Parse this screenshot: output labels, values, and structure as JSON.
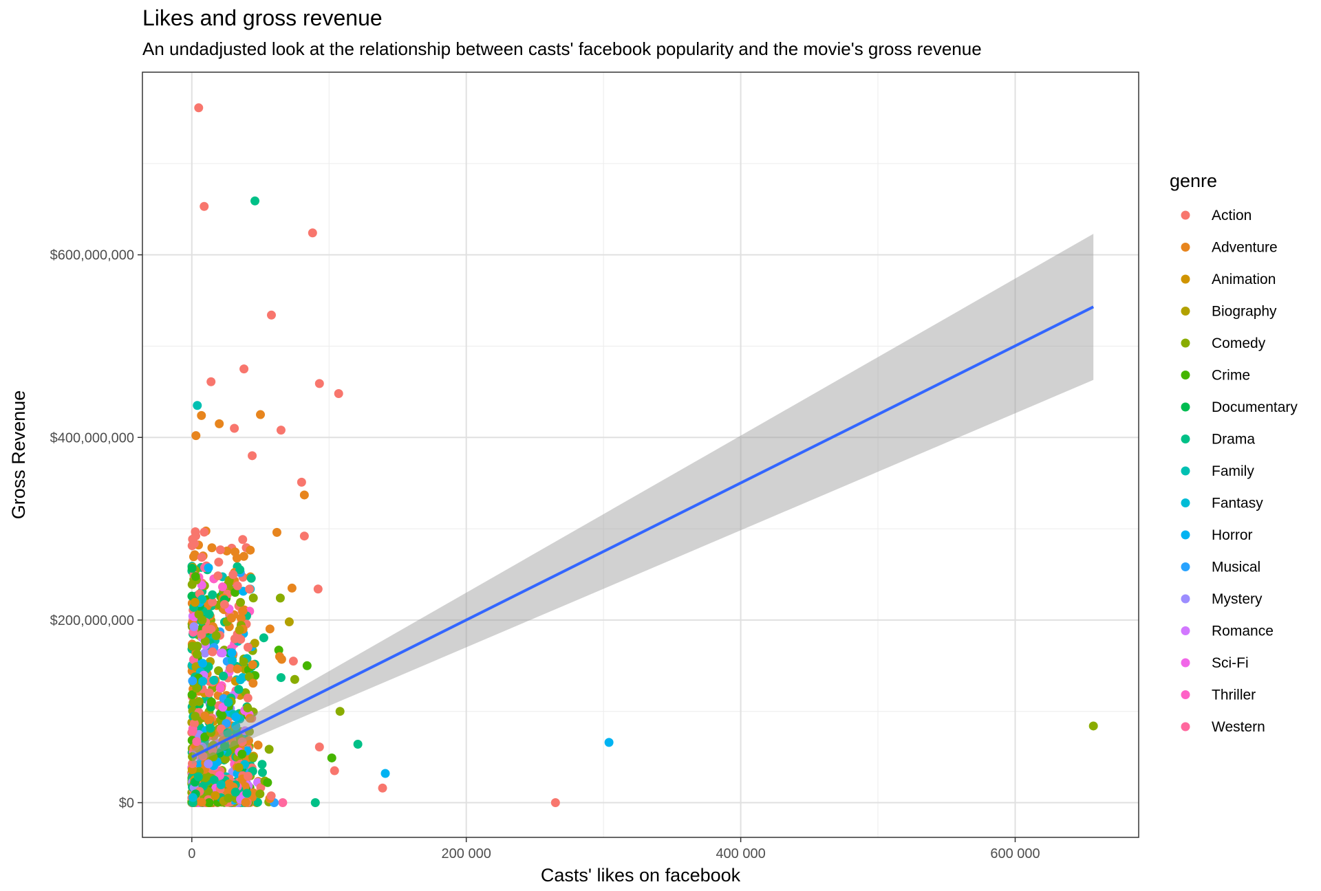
{
  "chart_data": {
    "type": "scatter",
    "title": "Likes and gross revenue",
    "subtitle": "An undadjusted look at the relationship between casts' facebook popularity and the movie's gross revenue",
    "xlabel": "Casts' likes on facebook",
    "ylabel": "Gross Revenue",
    "xlim": [
      -36000,
      690000
    ],
    "ylim": [
      -38000000,
      800000000
    ],
    "x_ticks": [
      {
        "value": 0,
        "label": "0"
      },
      {
        "value": 200000,
        "label": "200 000"
      },
      {
        "value": 400000,
        "label": "400 000"
      },
      {
        "value": 600000,
        "label": "600 000"
      }
    ],
    "y_ticks": [
      {
        "value": 0,
        "label": "$0"
      },
      {
        "value": 200000000,
        "label": "$200,000,000"
      },
      {
        "value": 400000000,
        "label": "$400,000,000"
      },
      {
        "value": 600000000,
        "label": "$600,000,000"
      }
    ],
    "grid": true,
    "legend": {
      "title": "genre",
      "position": "right",
      "entries": [
        {
          "name": "Action",
          "color": "#F8766D"
        },
        {
          "name": "Adventure",
          "color": "#E7851E"
        },
        {
          "name": "Animation",
          "color": "#D09400"
        },
        {
          "name": "Biography",
          "color": "#B2A100"
        },
        {
          "name": "Comedy",
          "color": "#89AC00"
        },
        {
          "name": "Crime",
          "color": "#45B500"
        },
        {
          "name": "Documentary",
          "color": "#00BC51"
        },
        {
          "name": "Drama",
          "color": "#00C087"
        },
        {
          "name": "Family",
          "color": "#00C0B2"
        },
        {
          "name": "Fantasy",
          "color": "#00BCD6"
        },
        {
          "name": "Horror",
          "color": "#00B3F2"
        },
        {
          "name": "Musical",
          "color": "#29A3FF"
        },
        {
          "name": "Mystery",
          "color": "#9C8DFF"
        },
        {
          "name": "Romance",
          "color": "#D277FF"
        },
        {
          "name": "Sci-Fi",
          "color": "#F166E8"
        },
        {
          "name": "Thriller",
          "color": "#FF61C7"
        },
        {
          "name": "Western",
          "color": "#FF689E"
        }
      ]
    },
    "trend_line": {
      "color": "#3366FF",
      "ci_color": "#999999",
      "points": [
        [
          0,
          50000000
        ],
        [
          657000,
          543000000
        ]
      ],
      "ci_upper_end": 623000000,
      "ci_lower_end": 463000000
    },
    "highlighted_points": [
      {
        "genre": "Action",
        "x": 5000,
        "y": 761000000
      },
      {
        "genre": "Action",
        "x": 9000,
        "y": 653000000
      },
      {
        "genre": "Drama",
        "x": 46000,
        "y": 659000000
      },
      {
        "genre": "Action",
        "x": 88000,
        "y": 624000000
      },
      {
        "genre": "Action",
        "x": 58000,
        "y": 534000000
      },
      {
        "genre": "Action",
        "x": 38000,
        "y": 475000000
      },
      {
        "genre": "Action",
        "x": 14000,
        "y": 461000000
      },
      {
        "genre": "Action",
        "x": 93000,
        "y": 459000000
      },
      {
        "genre": "Action",
        "x": 107000,
        "y": 448000000
      },
      {
        "genre": "Family",
        "x": 4000,
        "y": 435000000
      },
      {
        "genre": "Adventure",
        "x": 7000,
        "y": 424000000
      },
      {
        "genre": "Adventure",
        "x": 50000,
        "y": 425000000
      },
      {
        "genre": "Adventure",
        "x": 20000,
        "y": 415000000
      },
      {
        "genre": "Action",
        "x": 31000,
        "y": 410000000
      },
      {
        "genre": "Action",
        "x": 65000,
        "y": 408000000
      },
      {
        "genre": "Adventure",
        "x": 3000,
        "y": 402000000
      },
      {
        "genre": "Action",
        "x": 44000,
        "y": 380000000
      },
      {
        "genre": "Adventure",
        "x": 82000,
        "y": 337000000
      },
      {
        "genre": "Action",
        "x": 80000,
        "y": 351000000
      },
      {
        "genre": "Adventure",
        "x": 62000,
        "y": 296000000
      },
      {
        "genre": "Action",
        "x": 82000,
        "y": 292000000
      },
      {
        "genre": "Action",
        "x": 92000,
        "y": 234000000
      },
      {
        "genre": "Adventure",
        "x": 73000,
        "y": 235000000
      },
      {
        "genre": "Biography",
        "x": 71000,
        "y": 198000000
      },
      {
        "genre": "Comedy",
        "x": 108000,
        "y": 100000000
      },
      {
        "genre": "Drama",
        "x": 121000,
        "y": 64000000
      },
      {
        "genre": "Crime",
        "x": 102000,
        "y": 49000000
      },
      {
        "genre": "Action",
        "x": 93000,
        "y": 61000000
      },
      {
        "genre": "Action",
        "x": 104000,
        "y": 35000000
      },
      {
        "genre": "Horror",
        "x": 141000,
        "y": 32000000
      },
      {
        "genre": "Action",
        "x": 139000,
        "y": 16000000
      },
      {
        "genre": "Horror",
        "x": 304000,
        "y": 66000000
      },
      {
        "genre": "Action",
        "x": 265000,
        "y": 0
      },
      {
        "genre": "Comedy",
        "x": 657000,
        "y": 84000000
      },
      {
        "genre": "Drama",
        "x": 90000,
        "y": 0
      },
      {
        "genre": "Crime",
        "x": 84000,
        "y": 150000000
      },
      {
        "genre": "Drama",
        "x": 65000,
        "y": 137000000
      },
      {
        "genre": "Comedy",
        "x": 75000,
        "y": 135000000
      },
      {
        "genre": "Action",
        "x": 74000,
        "y": 155000000
      },
      {
        "genre": "Adventure",
        "x": 64000,
        "y": 160000000
      }
    ]
  }
}
